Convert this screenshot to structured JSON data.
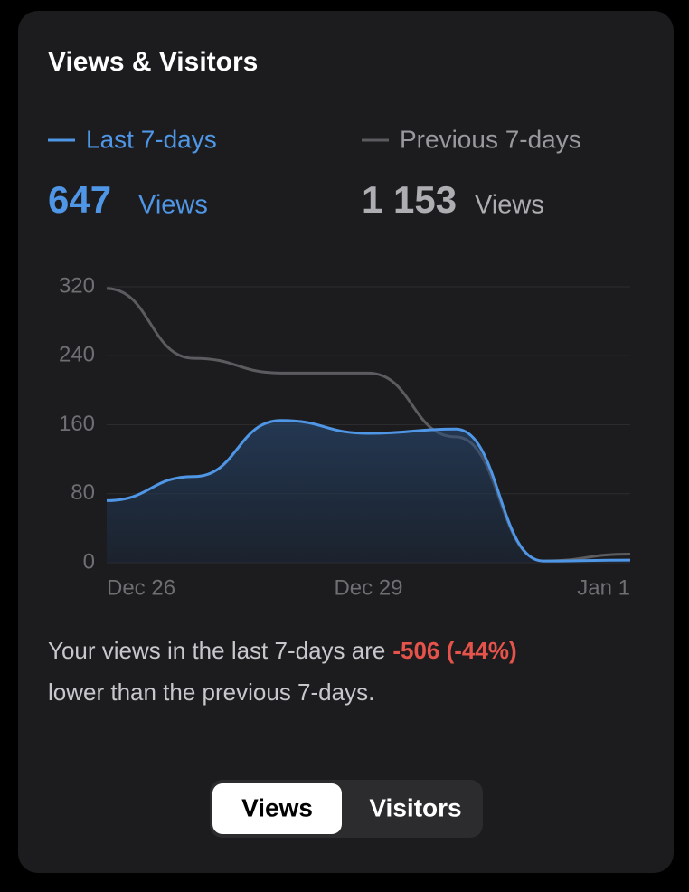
{
  "header": {
    "title": "Views & Visitors"
  },
  "summary": [
    {
      "total": "647",
      "unit": "Views"
    },
    {
      "total": "1 153",
      "unit": "Views"
    }
  ],
  "chart_data": {
    "type": "line",
    "categories": [
      "Dec 26",
      null,
      null,
      "Dec 29",
      null,
      null,
      "Jan 1"
    ],
    "series": [
      {
        "name": "Last 7-days",
        "color": "#4f97e6",
        "values": [
          72,
          100,
          165,
          150,
          155,
          2,
          3
        ],
        "fill": true
      },
      {
        "name": "Previous 7-days",
        "color": "#5c5c60",
        "values": [
          318,
          237,
          220,
          220,
          146,
          2,
          10
        ]
      }
    ],
    "ylim": [
      0,
      320
    ],
    "yticks": [
      0,
      80,
      160,
      240,
      320
    ],
    "grid": true
  },
  "message": {
    "text": "Your views in the last 7-days are",
    "change": "-506 (-44%)",
    "text_end": "lower than the previous 7-days."
  },
  "tabs": [
    {
      "label": "Views",
      "selected": true
    },
    {
      "label": "Visitors",
      "selected": false
    }
  ]
}
